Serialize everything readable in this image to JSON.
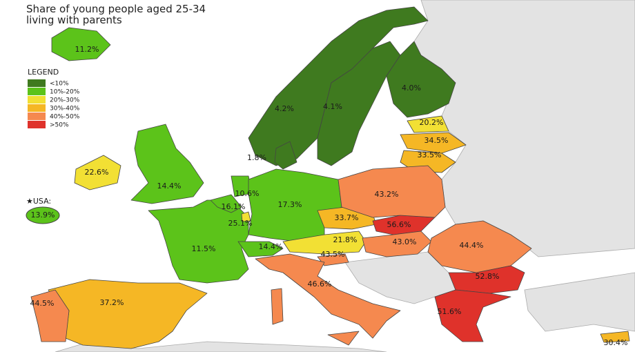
{
  "title": [
    "Share of young people aged 25-34",
    "living with parents"
  ],
  "legend": {
    "title": "LEGEND",
    "items": [
      "<10%",
      "10%-20%",
      "20%-30%",
      "30%-40%",
      "40%-50%",
      ">50%"
    ]
  },
  "usa": {
    "label": "★USA:",
    "value": "13.9%"
  },
  "countries": [
    "11.2%",
    "4.2%",
    "4.1%",
    "4.0%",
    "1.8%",
    "20.2%",
    "34.5%",
    "33.5%",
    "22.6%",
    "14.4%",
    "10.6%",
    "16.1%",
    "25.1%",
    "17.3%",
    "11.5%",
    "14.4%",
    "43.2%",
    "33.7%",
    "56.6%",
    "21.8%",
    "43.0%",
    "43.5%",
    "46.6%",
    "44.4%",
    "52.8%",
    "51.6%",
    "37.2%",
    "44.5%",
    "30.4%"
  ]
}
